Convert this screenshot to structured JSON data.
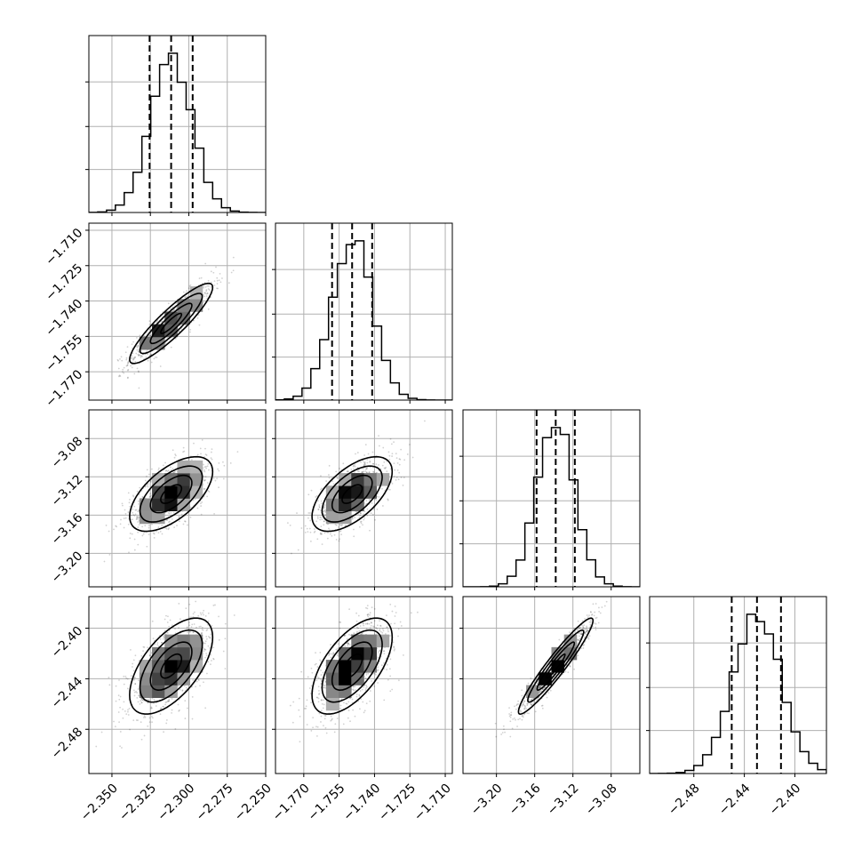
{
  "chart_data": {
    "type": "corner",
    "title": "",
    "grid": true,
    "parameters": [
      {
        "mean": -2.3115,
        "std": 0.0135,
        "range": [
          -2.365,
          -2.25
        ],
        "ticks": [
          -2.35,
          -2.325,
          -2.3,
          -2.275,
          -2.25
        ],
        "tick_labels": [
          "−2.350",
          "−2.325",
          "−2.300",
          "−2.275",
          "−2.250"
        ],
        "quantiles": [
          -2.3255,
          -2.3115,
          -2.2975
        ]
      },
      {
        "mean": -1.7495,
        "std": 0.0085,
        "range": [
          -1.782,
          -1.707
        ],
        "ticks": [
          -1.77,
          -1.755,
          -1.74,
          -1.725,
          -1.71
        ],
        "tick_labels": [
          "−1.770",
          "−1.755",
          "−1.740",
          "−1.725",
          "−1.710"
        ],
        "quantiles": [
          -1.758,
          -1.7495,
          -1.741
        ]
      },
      {
        "mean": -3.138,
        "std": 0.0195,
        "range": [
          -3.235,
          -3.05
        ],
        "ticks": [
          -3.2,
          -3.16,
          -3.12,
          -3.08
        ],
        "tick_labels": [
          "−3.20",
          "−3.16",
          "−3.12",
          "−3.08"
        ],
        "quantiles": [
          -3.158,
          -3.138,
          -3.118
        ]
      },
      {
        "mean": -2.43,
        "std": 0.019,
        "range": [
          -2.515,
          -2.375
        ],
        "ticks": [
          -2.48,
          -2.44,
          -2.4
        ],
        "tick_labels": [
          "−2.48",
          "−2.44",
          "−2.40"
        ],
        "quantiles": [
          -2.45,
          -2.43,
          -2.411
        ]
      }
    ],
    "correlations": {
      "1-0": 0.9,
      "2-0": 0.6,
      "2-1": 0.6,
      "3-0": 0.6,
      "3-1": 0.6,
      "3-2": 0.95
    },
    "histogram_bins": 20,
    "contour_levels_sigma": [
      0.5,
      1.0,
      1.5,
      2.0
    ]
  }
}
